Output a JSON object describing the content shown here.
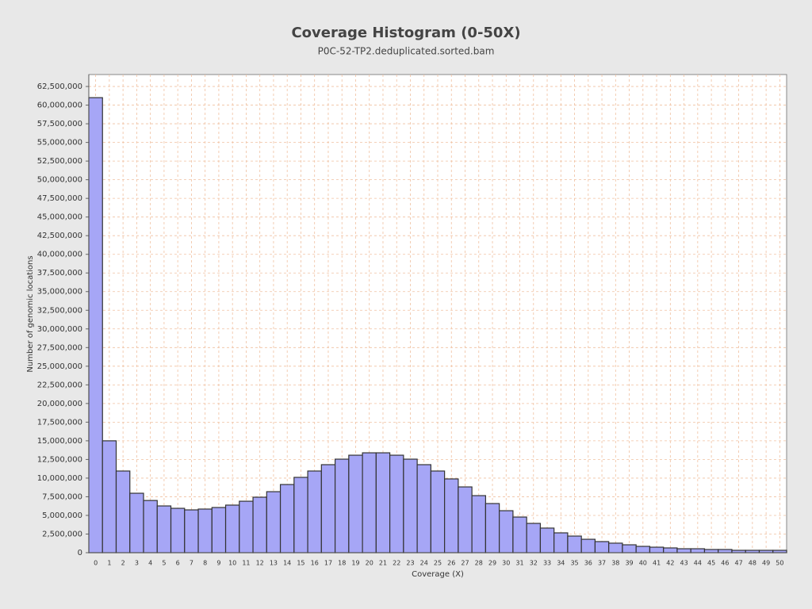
{
  "chart_data": {
    "type": "bar",
    "title": "Coverage Histogram (0-50X)",
    "subtitle": "P0C-52-TP2.deduplicated.sorted.bam",
    "x_label": "Coverage (X)",
    "y_label": "Number of genomic locations",
    "categories": [
      "0",
      "1",
      "2",
      "3",
      "4",
      "5",
      "6",
      "7",
      "8",
      "9",
      "10",
      "11",
      "12",
      "13",
      "14",
      "15",
      "16",
      "17",
      "18",
      "19",
      "20",
      "21",
      "22",
      "23",
      "24",
      "25",
      "26",
      "27",
      "28",
      "29",
      "30",
      "31",
      "32",
      "33",
      "34",
      "35",
      "36",
      "37",
      "38",
      "39",
      "40",
      "41",
      "42",
      "43",
      "44",
      "45",
      "46",
      "47",
      "48",
      "49",
      "50"
    ],
    "values": [
      61000000,
      15000000,
      10950000,
      7970000,
      7000000,
      6270000,
      5950000,
      5740000,
      5850000,
      6060000,
      6380000,
      6900000,
      7440000,
      8180000,
      9140000,
      10100000,
      10950000,
      11800000,
      12540000,
      13070000,
      13390000,
      13390000,
      13070000,
      12540000,
      11800000,
      10950000,
      9890000,
      8820000,
      7650000,
      6590000,
      5630000,
      4780000,
      3930000,
      3300000,
      2660000,
      2230000,
      1800000,
      1490000,
      1280000,
      1060000,
      850000,
      740000,
      640000,
      530000,
      530000,
      430000,
      430000,
      320000,
      320000,
      320000,
      320000
    ],
    "color": "#a6a6f6",
    "ylim": [
      0,
      64100000
    ],
    "yticks": [
      0,
      {
        "value": 2500000,
        "label": "2,500,000"
      },
      {
        "value": 5000000,
        "label": "5,000,000"
      },
      {
        "value": 7500000,
        "label": "7,500,000"
      },
      {
        "value": 10000000,
        "label": "10,000,000"
      },
      {
        "value": 12500000,
        "label": "12,500,000"
      },
      {
        "value": 15000000,
        "label": "15,000,000"
      },
      {
        "value": 17500000,
        "label": "17,500,000"
      },
      {
        "value": 20000000,
        "label": "20,000,000"
      },
      {
        "value": 22500000,
        "label": "22,500,000"
      },
      {
        "value": 25000000,
        "label": "25,000,000"
      },
      {
        "value": 27500000,
        "label": "27,500,000"
      },
      {
        "value": 30000000,
        "label": "30,000,000"
      },
      {
        "value": 32500000,
        "label": "32,500,000"
      },
      {
        "value": 35000000,
        "label": "35,000,000"
      },
      {
        "value": 37500000,
        "label": "37,500,000"
      },
      {
        "value": 40000000,
        "label": "40,000,000"
      },
      {
        "value": 42500000,
        "label": "42,500,000"
      },
      {
        "value": 45000000,
        "label": "45,000,000"
      },
      {
        "value": 47500000,
        "label": "47,500,000"
      },
      {
        "value": 50000000,
        "label": "50,000,000"
      },
      {
        "value": 52500000,
        "label": "52,500,000"
      },
      {
        "value": 55000000,
        "label": "55,000,000"
      },
      {
        "value": 57500000,
        "label": "57,500,000"
      },
      {
        "value": 60000000,
        "label": "60,000,000"
      },
      {
        "value": 62500000,
        "label": "62,500,000"
      }
    ],
    "grid": true
  }
}
